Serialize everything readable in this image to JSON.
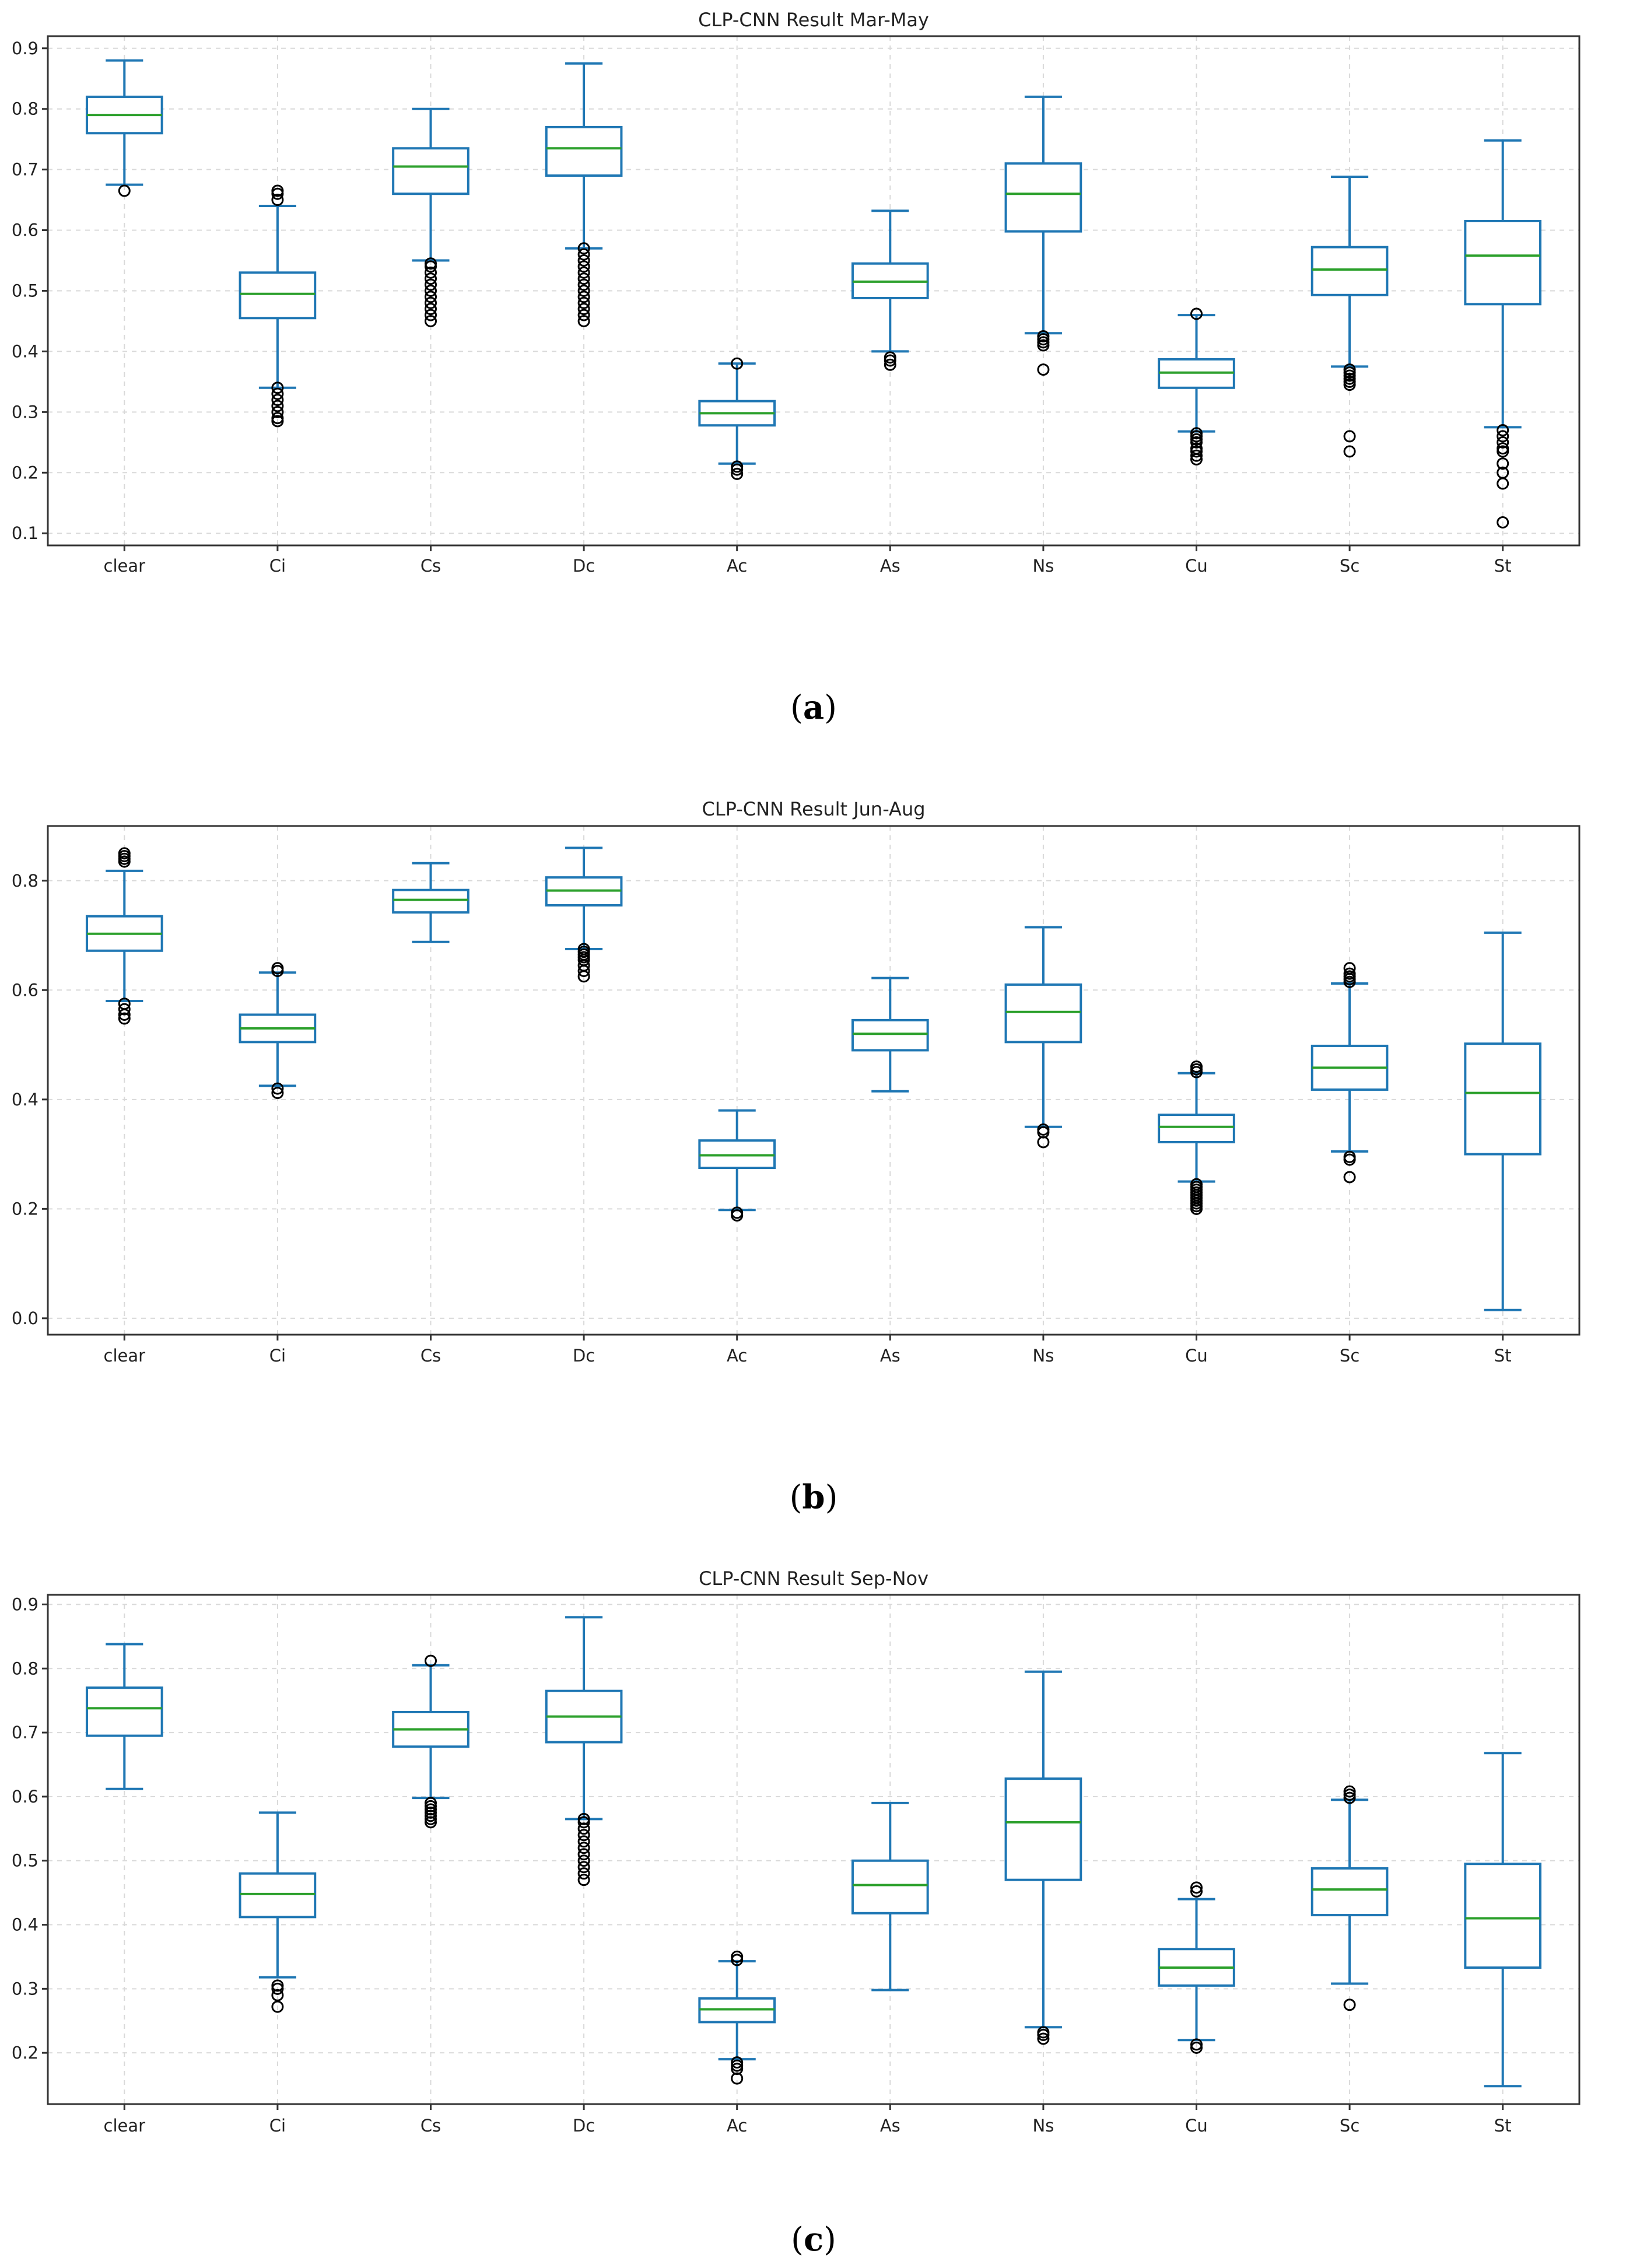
{
  "chart_data": [
    {
      "type": "box",
      "title": "CLP-CNN Result Mar-May",
      "caption_letter": "a",
      "categories": [
        "clear",
        "Ci",
        "Cs",
        "Dc",
        "Ac",
        "As",
        "Ns",
        "Cu",
        "Sc",
        "St"
      ],
      "ylim": [
        0.08,
        0.92
      ],
      "yticks": [
        0.1,
        0.2,
        0.3,
        0.4,
        0.5,
        0.6,
        0.7,
        0.8,
        0.9
      ],
      "ytick_labels": [
        "0.1",
        "0.2",
        "0.3",
        "0.4",
        "0.5",
        "0.6",
        "0.7",
        "0.8",
        "0.9"
      ],
      "grid": true,
      "boxes": [
        {
          "min": 0.675,
          "q1": 0.76,
          "median": 0.79,
          "q3": 0.82,
          "max": 0.88,
          "fliers": [
            0.665
          ]
        },
        {
          "min": 0.34,
          "q1": 0.455,
          "median": 0.495,
          "q3": 0.53,
          "max": 0.64,
          "fliers": [
            0.285,
            0.29,
            0.3,
            0.31,
            0.32,
            0.33,
            0.34,
            0.65,
            0.66,
            0.665
          ]
        },
        {
          "min": 0.55,
          "q1": 0.66,
          "median": 0.705,
          "q3": 0.735,
          "max": 0.8,
          "fliers": [
            0.45,
            0.46,
            0.47,
            0.48,
            0.49,
            0.5,
            0.51,
            0.52,
            0.53,
            0.54,
            0.545
          ]
        },
        {
          "min": 0.57,
          "q1": 0.69,
          "median": 0.735,
          "q3": 0.77,
          "max": 0.875,
          "fliers": [
            0.45,
            0.46,
            0.47,
            0.48,
            0.49,
            0.5,
            0.51,
            0.52,
            0.53,
            0.54,
            0.55,
            0.56,
            0.57
          ]
        },
        {
          "min": 0.215,
          "q1": 0.278,
          "median": 0.298,
          "q3": 0.318,
          "max": 0.38,
          "fliers": [
            0.198,
            0.205,
            0.21,
            0.38
          ]
        },
        {
          "min": 0.4,
          "q1": 0.488,
          "median": 0.515,
          "q3": 0.545,
          "max": 0.632,
          "fliers": [
            0.378,
            0.385,
            0.39
          ]
        },
        {
          "min": 0.43,
          "q1": 0.598,
          "median": 0.66,
          "q3": 0.71,
          "max": 0.82,
          "fliers": [
            0.37,
            0.41,
            0.415,
            0.42,
            0.425
          ]
        },
        {
          "min": 0.268,
          "q1": 0.34,
          "median": 0.365,
          "q3": 0.387,
          "max": 0.46,
          "fliers": [
            0.222,
            0.228,
            0.235,
            0.24,
            0.25,
            0.255,
            0.26,
            0.265,
            0.462
          ]
        },
        {
          "min": 0.375,
          "q1": 0.493,
          "median": 0.535,
          "q3": 0.572,
          "max": 0.688,
          "fliers": [
            0.235,
            0.26,
            0.345,
            0.35,
            0.355,
            0.36,
            0.365,
            0.37
          ]
        },
        {
          "min": 0.275,
          "q1": 0.478,
          "median": 0.558,
          "q3": 0.615,
          "max": 0.748,
          "fliers": [
            0.118,
            0.182,
            0.2,
            0.215,
            0.235,
            0.24,
            0.25,
            0.26,
            0.27
          ]
        }
      ]
    },
    {
      "type": "box",
      "title": "CLP-CNN Result Jun-Aug",
      "caption_letter": "b",
      "categories": [
        "clear",
        "Ci",
        "Cs",
        "Dc",
        "Ac",
        "As",
        "Ns",
        "Cu",
        "Sc",
        "St"
      ],
      "ylim": [
        -0.03,
        0.9
      ],
      "yticks": [
        0.0,
        0.2,
        0.4,
        0.6,
        0.8
      ],
      "ytick_labels": [
        "0.0",
        "0.2",
        "0.4",
        "0.6",
        "0.8"
      ],
      "grid": true,
      "boxes": [
        {
          "min": 0.58,
          "q1": 0.672,
          "median": 0.703,
          "q3": 0.735,
          "max": 0.818,
          "fliers": [
            0.548,
            0.555,
            0.565,
            0.575,
            0.835,
            0.84,
            0.845,
            0.85
          ]
        },
        {
          "min": 0.425,
          "q1": 0.505,
          "median": 0.53,
          "q3": 0.555,
          "max": 0.632,
          "fliers": [
            0.412,
            0.42,
            0.635,
            0.64
          ]
        },
        {
          "min": 0.688,
          "q1": 0.742,
          "median": 0.765,
          "q3": 0.783,
          "max": 0.832,
          "fliers": []
        },
        {
          "min": 0.675,
          "q1": 0.755,
          "median": 0.782,
          "q3": 0.806,
          "max": 0.86,
          "fliers": [
            0.625,
            0.635,
            0.645,
            0.655,
            0.66,
            0.665,
            0.67,
            0.675
          ]
        },
        {
          "min": 0.198,
          "q1": 0.275,
          "median": 0.298,
          "q3": 0.325,
          "max": 0.38,
          "fliers": [
            0.188,
            0.193
          ]
        },
        {
          "min": 0.415,
          "q1": 0.49,
          "median": 0.52,
          "q3": 0.545,
          "max": 0.622,
          "fliers": []
        },
        {
          "min": 0.35,
          "q1": 0.505,
          "median": 0.56,
          "q3": 0.61,
          "max": 0.715,
          "fliers": [
            0.322,
            0.34,
            0.345
          ]
        },
        {
          "min": 0.25,
          "q1": 0.322,
          "median": 0.35,
          "q3": 0.372,
          "max": 0.448,
          "fliers": [
            0.2,
            0.205,
            0.21,
            0.215,
            0.22,
            0.225,
            0.23,
            0.235,
            0.24,
            0.245,
            0.45,
            0.455,
            0.46
          ]
        },
        {
          "min": 0.305,
          "q1": 0.418,
          "median": 0.458,
          "q3": 0.498,
          "max": 0.612,
          "fliers": [
            0.258,
            0.29,
            0.295,
            0.615,
            0.62,
            0.625,
            0.63,
            0.64
          ]
        },
        {
          "min": 0.015,
          "q1": 0.3,
          "median": 0.412,
          "q3": 0.502,
          "max": 0.705,
          "fliers": []
        }
      ]
    },
    {
      "type": "box",
      "title": "CLP-CNN Result Sep-Nov",
      "caption_letter": "c",
      "categories": [
        "clear",
        "Ci",
        "Cs",
        "Dc",
        "Ac",
        "As",
        "Ns",
        "Cu",
        "Sc",
        "St"
      ],
      "ylim": [
        0.12,
        0.915
      ],
      "yticks": [
        0.2,
        0.3,
        0.4,
        0.5,
        0.6,
        0.7,
        0.8,
        0.9
      ],
      "ytick_labels": [
        "0.2",
        "0.3",
        "0.4",
        "0.5",
        "0.6",
        "0.7",
        "0.8",
        "0.9"
      ],
      "grid": true,
      "boxes": [
        {
          "min": 0.612,
          "q1": 0.695,
          "median": 0.738,
          "q3": 0.77,
          "max": 0.838,
          "fliers": []
        },
        {
          "min": 0.318,
          "q1": 0.412,
          "median": 0.448,
          "q3": 0.48,
          "max": 0.575,
          "fliers": [
            0.272,
            0.29,
            0.3,
            0.305
          ]
        },
        {
          "min": 0.598,
          "q1": 0.678,
          "median": 0.705,
          "q3": 0.732,
          "max": 0.805,
          "fliers": [
            0.56,
            0.565,
            0.57,
            0.575,
            0.58,
            0.585,
            0.59,
            0.812
          ]
        },
        {
          "min": 0.565,
          "q1": 0.685,
          "median": 0.725,
          "q3": 0.765,
          "max": 0.88,
          "fliers": [
            0.47,
            0.48,
            0.49,
            0.5,
            0.51,
            0.52,
            0.53,
            0.54,
            0.55,
            0.56,
            0.565
          ]
        },
        {
          "min": 0.19,
          "q1": 0.248,
          "median": 0.268,
          "q3": 0.285,
          "max": 0.343,
          "fliers": [
            0.16,
            0.175,
            0.18,
            0.185,
            0.345,
            0.35
          ]
        },
        {
          "min": 0.298,
          "q1": 0.418,
          "median": 0.462,
          "q3": 0.5,
          "max": 0.59,
          "fliers": []
        },
        {
          "min": 0.24,
          "q1": 0.47,
          "median": 0.56,
          "q3": 0.628,
          "max": 0.795,
          "fliers": [
            0.222,
            0.228,
            0.232
          ]
        },
        {
          "min": 0.22,
          "q1": 0.305,
          "median": 0.333,
          "q3": 0.362,
          "max": 0.44,
          "fliers": [
            0.208,
            0.213,
            0.452,
            0.458
          ]
        },
        {
          "min": 0.308,
          "q1": 0.415,
          "median": 0.455,
          "q3": 0.488,
          "max": 0.595,
          "fliers": [
            0.275,
            0.598,
            0.603,
            0.608
          ]
        },
        {
          "min": 0.148,
          "q1": 0.333,
          "median": 0.41,
          "q3": 0.495,
          "max": 0.668,
          "fliers": []
        }
      ]
    }
  ]
}
